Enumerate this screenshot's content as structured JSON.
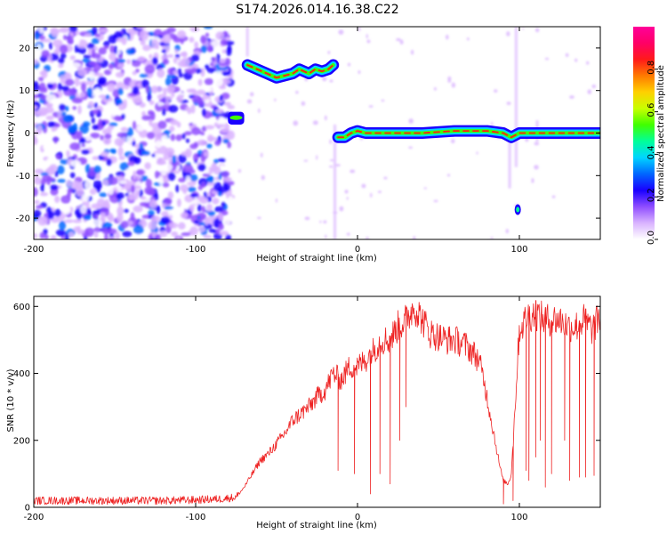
{
  "title": "S174.2026.014.16.38.C22",
  "chart_data": [
    {
      "type": "heatmap",
      "name": "spectrogram",
      "xlabel": "Height of straight line (km)",
      "ylabel": "Frequency (Hz)",
      "xlim": [
        -200,
        150
      ],
      "ylim": [
        -25,
        25
      ],
      "xticks": [
        -200,
        -100,
        0,
        100
      ],
      "yticks": [
        -20,
        -10,
        0,
        10,
        20
      ],
      "colorbar": {
        "label": "Normalized spectral amplitude",
        "range": [
          0.0,
          1.0
        ],
        "ticks": [
          0.0,
          0.2,
          0.4,
          0.6,
          0.8
        ],
        "tick_labels": [
          "0.0",
          "0.2",
          "0.4",
          "0.6",
          "0.8"
        ],
        "colors": [
          "#ffffff",
          "#d9b3ff",
          "#8f4dff",
          "#1a00ff",
          "#0066ff",
          "#00d5ff",
          "#00ff99",
          "#40ff00",
          "#c8ff00",
          "#ffd000",
          "#ff7a00",
          "#ff1a1a",
          "#ff0066",
          "#ff0099"
        ]
      },
      "regions": [
        {
          "label": "noise",
          "x": [
            -200,
            -78
          ],
          "y": [
            -25,
            25
          ],
          "level": 0.1
        },
        {
          "label": "blob",
          "x": [
            -80,
            -70
          ],
          "y": [
            2,
            5
          ],
          "level": 0.5
        },
        {
          "label": "upper branch",
          "x": [
            -68,
            -15
          ],
          "y": [
            12,
            16
          ],
          "level": 0.65
        },
        {
          "label": "main branch",
          "x": [
            -12,
            150
          ],
          "y": [
            -1,
            1
          ],
          "level": 0.8
        },
        {
          "label": "spot",
          "x": [
            97,
            101
          ],
          "y": [
            -19,
            -17
          ],
          "level": 0.45
        }
      ],
      "upper_branch": {
        "x": [
          -68,
          -62,
          -56,
          -50,
          -45,
          -40,
          -36,
          -30,
          -26,
          -22,
          -18,
          -15
        ],
        "y": [
          16,
          15,
          14,
          13,
          13.5,
          14,
          15,
          14,
          15,
          14.5,
          15,
          16
        ]
      },
      "main_branch": {
        "x": [
          -12,
          -8,
          -4,
          0,
          5,
          10,
          20,
          40,
          60,
          80,
          90,
          95,
          100,
          110,
          130,
          150
        ],
        "y": [
          -1,
          -1,
          0,
          0.5,
          0,
          0,
          0,
          0,
          0.5,
          0.5,
          0,
          -1,
          0,
          0,
          0,
          0
        ]
      }
    },
    {
      "type": "line",
      "name": "snr",
      "xlabel": "Height of straight line (km)",
      "ylabel": "SNR (10 * v/v)",
      "xlim": [
        -200,
        150
      ],
      "ylim": [
        0,
        630
      ],
      "xticks": [
        -200,
        -100,
        0,
        100
      ],
      "yticks": [
        0,
        200,
        400,
        600
      ],
      "color": "#ee2222",
      "series": [
        {
          "name": "SNR",
          "x": [
            -200,
            -180,
            -160,
            -140,
            -120,
            -100,
            -85,
            -75,
            -70,
            -65,
            -60,
            -55,
            -50,
            -45,
            -40,
            -35,
            -30,
            -25,
            -20,
            -15,
            -10,
            -5,
            0,
            5,
            10,
            15,
            20,
            25,
            30,
            35,
            40,
            45,
            50,
            55,
            60,
            65,
            70,
            75,
            78,
            80,
            83,
            85,
            88,
            90,
            93,
            95,
            100,
            105,
            110,
            115,
            120,
            125,
            130,
            135,
            140,
            145,
            150
          ],
          "y": [
            20,
            20,
            20,
            20,
            20,
            22,
            25,
            30,
            60,
            100,
            140,
            160,
            190,
            220,
            260,
            280,
            300,
            330,
            350,
            400,
            380,
            420,
            420,
            440,
            470,
            500,
            500,
            540,
            560,
            600,
            560,
            520,
            510,
            500,
            500,
            490,
            470,
            440,
            380,
            330,
            250,
            200,
            120,
            80,
            70,
            100,
            530,
            570,
            580,
            560,
            560,
            560,
            540,
            540,
            560,
            530,
            570
          ]
        }
      ],
      "dropouts": [
        {
          "x": -12,
          "y": 110
        },
        {
          "x": -2,
          "y": 100
        },
        {
          "x": 8,
          "y": 40
        },
        {
          "x": 14,
          "y": 100
        },
        {
          "x": 20,
          "y": 70
        },
        {
          "x": 26,
          "y": 200
        },
        {
          "x": 30,
          "y": 300
        },
        {
          "x": 90,
          "y": 10
        },
        {
          "x": 96,
          "y": 20
        },
        {
          "x": 104,
          "y": 110
        },
        {
          "x": 106,
          "y": 80
        },
        {
          "x": 110,
          "y": 150
        },
        {
          "x": 113,
          "y": 200
        },
        {
          "x": 116,
          "y": 60
        },
        {
          "x": 120,
          "y": 100
        },
        {
          "x": 128,
          "y": 200
        },
        {
          "x": 131,
          "y": 80
        },
        {
          "x": 137,
          "y": 90
        },
        {
          "x": 141,
          "y": 90
        },
        {
          "x": 146,
          "y": 95
        }
      ]
    }
  ]
}
